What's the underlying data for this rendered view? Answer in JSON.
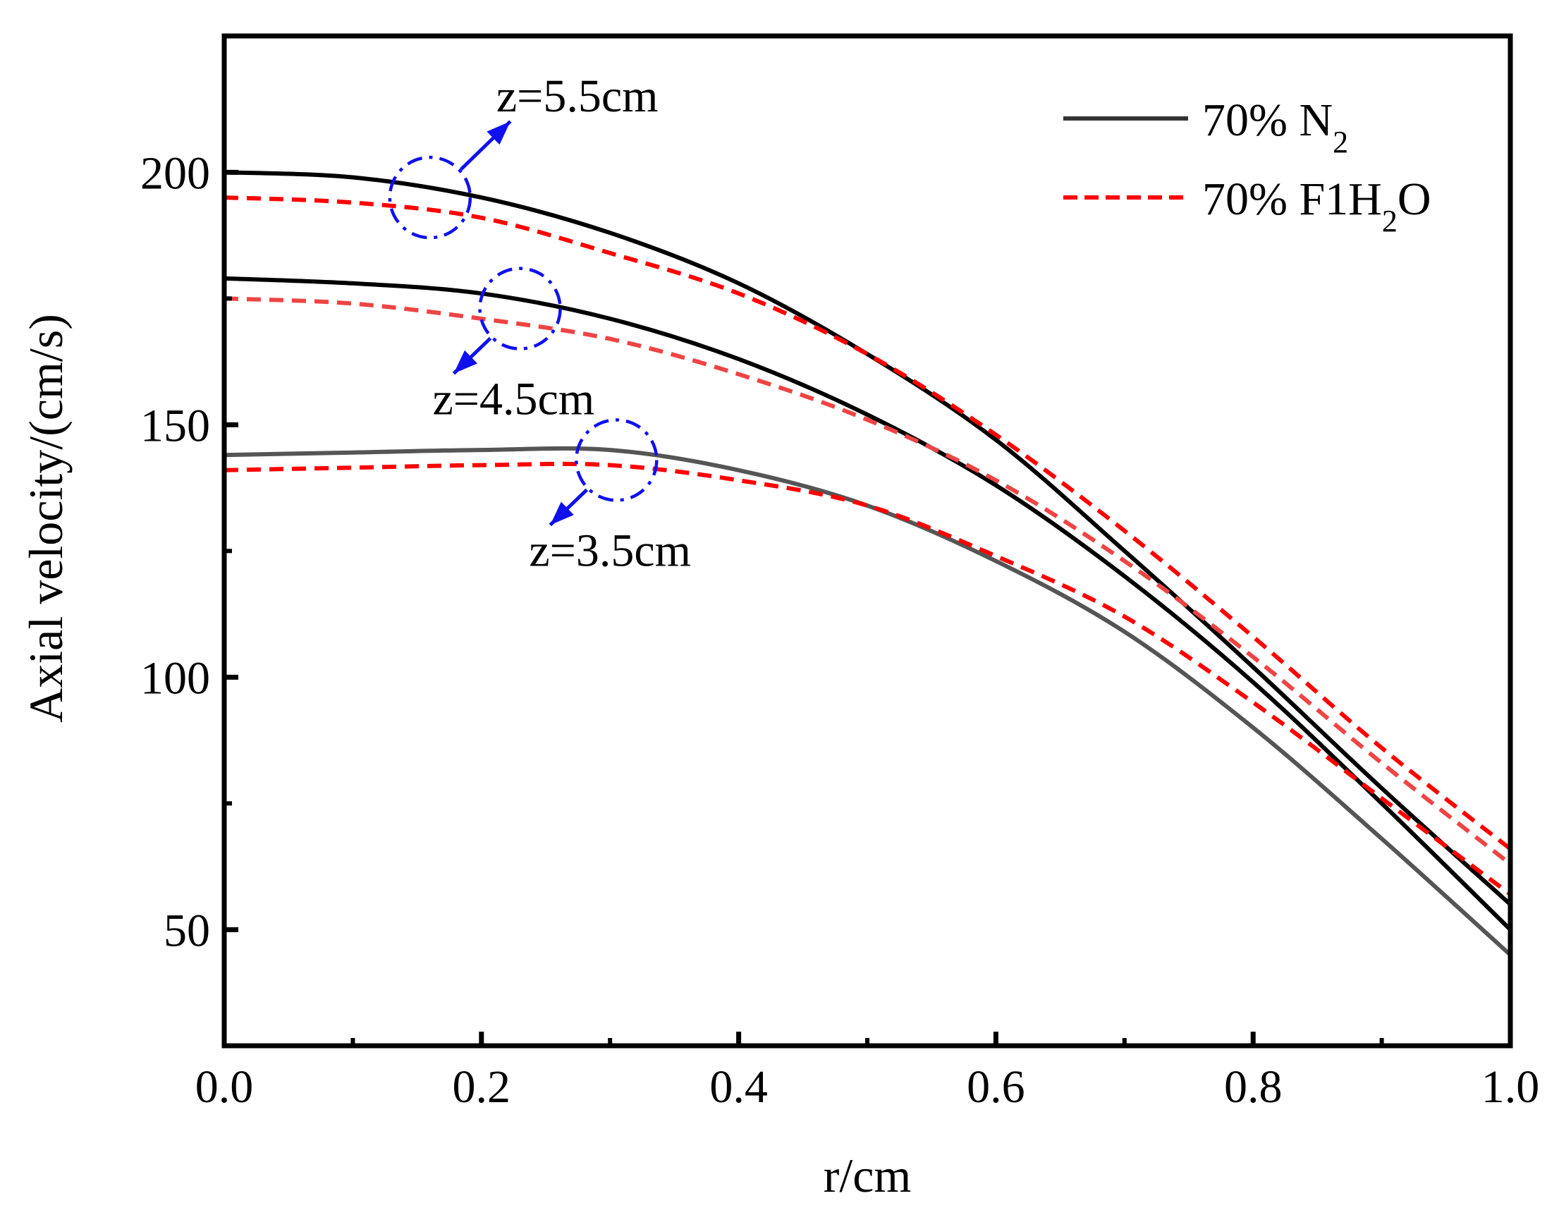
{
  "chart_data": {
    "type": "line",
    "title": "",
    "xlabel": "r/cm",
    "ylabel": "Axial velocity/(cm/s)",
    "xlim": [
      0.0,
      1.0
    ],
    "ylim": [
      27,
      227
    ],
    "xticks": [
      0.0,
      0.2,
      0.4,
      0.6,
      0.8,
      1.0
    ],
    "xtick_labels": [
      "0.0",
      "0.2",
      "0.4",
      "0.6",
      "0.8",
      "1.0"
    ],
    "xminor": [
      0.1,
      0.3,
      0.5,
      0.7,
      0.9
    ],
    "yticks": [
      50,
      100,
      150,
      200
    ],
    "ytick_labels": [
      "50",
      "100",
      "150",
      "200"
    ],
    "yminor": [
      75,
      125,
      175
    ],
    "grid": false,
    "legend_position": "top-right",
    "legend": [
      {
        "label": "70% N",
        "sub": "2",
        "suffix": "",
        "style": "solid",
        "color": "#000000"
      },
      {
        "label": "70% F1H",
        "sub": "2",
        "suffix": "O",
        "style": "dashed",
        "color": "#ff0000"
      }
    ],
    "x": [
      0.0,
      0.1,
      0.2,
      0.3,
      0.4,
      0.5,
      0.6,
      0.7,
      0.8,
      0.9,
      1.0
    ],
    "series": [
      {
        "name": "70% N2, z=5.5cm",
        "style": "solid",
        "color": "#000000",
        "values": [
          200,
          199,
          195,
          188,
          178,
          164,
          147,
          125,
          102,
          78,
          55
        ]
      },
      {
        "name": "70% F1H2O, z=5.5cm",
        "style": "dashed",
        "color": "#ff0000",
        "values": [
          195,
          194,
          191,
          184,
          176,
          164,
          148,
          129,
          108,
          86,
          66
        ]
      },
      {
        "name": "70% N2, z=4.5cm",
        "style": "solid",
        "color": "#000000",
        "values": [
          179,
          178,
          176,
          171,
          163,
          152,
          138,
          120,
          99,
          75,
          50
        ]
      },
      {
        "name": "70% F1H2O, z=4.5cm",
        "style": "dashed",
        "color": "#ee4444",
        "values": [
          175,
          174,
          171,
          167,
          160,
          151,
          139,
          123,
          104,
          83,
          63
        ]
      },
      {
        "name": "70% N2, z=3.5cm",
        "style": "solid",
        "color": "#555555",
        "values": [
          144,
          144.5,
          145,
          145,
          141,
          134,
          123,
          109,
          90,
          68,
          45
        ]
      },
      {
        "name": "70% F1H2O, z=3.5cm",
        "style": "dashed",
        "color": "#ff0000",
        "values": [
          141,
          141.5,
          142,
          142,
          139,
          134,
          124,
          112,
          95,
          76,
          57
        ]
      }
    ],
    "annotations": [
      {
        "text": "z=5.5cm",
        "circle_at": [
          0.16,
          195
        ],
        "arrow": "up-right"
      },
      {
        "text": "z=4.5cm",
        "circle_at": [
          0.23,
          173
        ],
        "arrow": "down-left"
      },
      {
        "text": "z=3.5cm",
        "circle_at": [
          0.305,
          143
        ],
        "arrow": "down-left"
      }
    ]
  }
}
